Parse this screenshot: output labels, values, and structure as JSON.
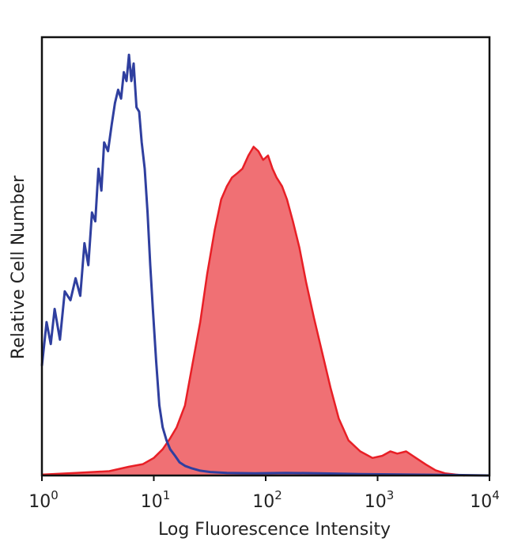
{
  "chart_data": {
    "type": "area",
    "xlabel": "Log Fluorescence Intensity",
    "ylabel": "Relative Cell Number",
    "x_scale": "log",
    "xlim": [
      1,
      10000
    ],
    "ylim": [
      0,
      100
    ],
    "grid": false,
    "x_ticks": [
      {
        "value": 1,
        "base": "10",
        "exp": "0"
      },
      {
        "value": 10,
        "base": "10",
        "exp": "1"
      },
      {
        "value": 100,
        "base": "10",
        "exp": "2"
      },
      {
        "value": 1000,
        "base": "10",
        "exp": "3"
      },
      {
        "value": 10000,
        "base": "10",
        "exp": "4"
      }
    ],
    "series": [
      {
        "style": "line",
        "color": "#2f3f9f",
        "x": [
          1.0,
          1.1,
          1.2,
          1.3,
          1.45,
          1.6,
          1.8,
          2.0,
          2.2,
          2.4,
          2.6,
          2.8,
          3.0,
          3.2,
          3.4,
          3.6,
          3.9,
          4.2,
          4.5,
          4.8,
          5.1,
          5.4,
          5.7,
          6.0,
          6.3,
          6.6,
          7.0,
          7.4,
          7.8,
          8.3,
          8.8,
          9.3,
          9.8,
          10.5,
          11.2,
          12.0,
          13.0,
          14.0,
          15.5,
          17.0,
          19.0,
          22.0,
          26.0,
          32.0,
          45.0,
          80.0,
          150.0,
          300.0,
          700.0,
          2000.0,
          5000.0,
          10000.0
        ],
        "y": [
          25,
          35,
          30,
          38,
          31,
          42,
          40,
          45,
          41,
          53,
          48,
          60,
          58,
          70,
          65,
          76,
          74,
          80,
          85,
          88,
          86,
          92,
          90,
          96,
          90,
          94,
          84,
          83,
          76,
          70,
          60,
          48,
          38,
          26,
          16,
          11,
          8,
          6,
          4.5,
          3,
          2.2,
          1.6,
          1.1,
          0.8,
          0.6,
          0.5,
          0.6,
          0.5,
          0.3,
          0.2,
          0.1,
          0
        ]
      },
      {
        "style": "filled",
        "color": "#e81f26",
        "fill": "#f07074",
        "x": [
          1.0,
          2.0,
          4.0,
          6.0,
          8.0,
          10.0,
          12.0,
          14.0,
          16.0,
          19.0,
          22.0,
          26.0,
          30.0,
          35.0,
          40.0,
          45.0,
          50.0,
          56.0,
          62.0,
          70.0,
          78.0,
          86.0,
          95.0,
          105.0,
          115.0,
          125.0,
          140.0,
          155.0,
          175.0,
          200.0,
          230.0,
          270.0,
          320.0,
          380.0,
          450.0,
          550.0,
          700.0,
          900.0,
          1100.0,
          1300.0,
          1500.0,
          1800.0,
          2200.0,
          2700.0,
          3300.0,
          4000.0,
          5000.0,
          6000.0
        ],
        "y": [
          0.2,
          0.6,
          1.0,
          2.0,
          2.6,
          4.0,
          6.0,
          8.5,
          11.0,
          16.0,
          25.0,
          35.0,
          46.0,
          56.0,
          63.0,
          66.0,
          68.0,
          69.0,
          70.0,
          73.0,
          75.0,
          74.0,
          72.0,
          73.0,
          70.0,
          68.0,
          66.0,
          63.0,
          58.0,
          52.0,
          44.0,
          36.0,
          28.0,
          20.0,
          13.0,
          8.0,
          5.5,
          4.0,
          4.5,
          5.5,
          5.0,
          5.5,
          4.0,
          2.5,
          1.2,
          0.5,
          0.2,
          0
        ]
      }
    ]
  }
}
